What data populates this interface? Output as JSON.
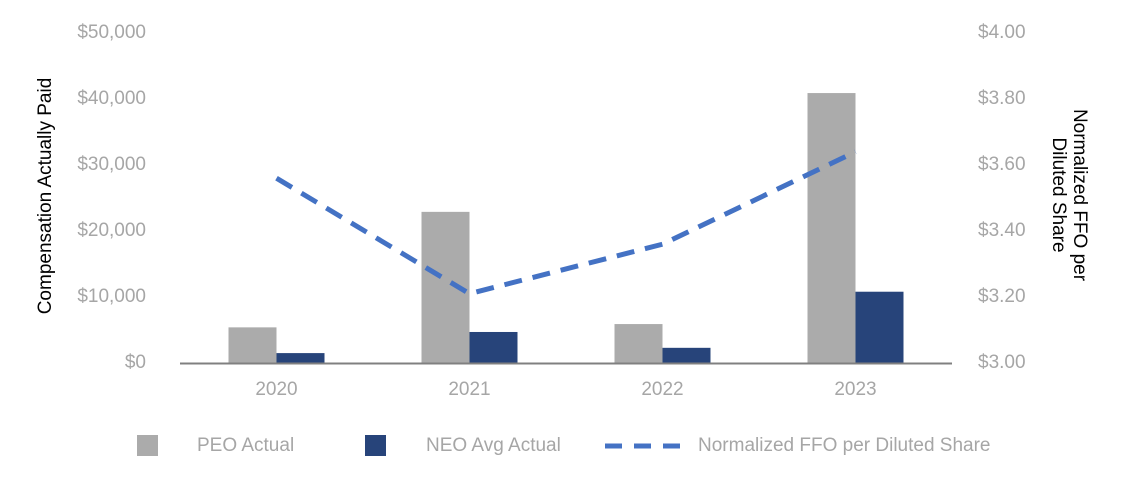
{
  "chart_data": {
    "type": "combo",
    "categories": [
      "2020",
      "2021",
      "2022",
      "2023"
    ],
    "series": [
      {
        "name": "PEO Actual",
        "type": "bar",
        "axis": "left",
        "color": "#ABABAB",
        "values": [
          5400,
          22900,
          5900,
          40900
        ]
      },
      {
        "name": "NEO Avg Actual",
        "type": "bar",
        "axis": "left",
        "color": "#27447A",
        "values": [
          1500,
          4700,
          2300,
          10800
        ]
      },
      {
        "name": "Normalized FFO per Diluted Share",
        "type": "line",
        "line_style": "dashed",
        "axis": "right",
        "color": "#4472C4",
        "values": [
          3.56,
          3.21,
          3.36,
          3.64
        ]
      }
    ],
    "left_axis": {
      "label": "Compensation Actually Paid",
      "min": 0,
      "max": 50000,
      "ticks": [
        "$0",
        "$10,000",
        "$20,000",
        "$30,000",
        "$40,000",
        "$50,000"
      ]
    },
    "right_axis": {
      "label_line1": "Normalized FFO per",
      "label_line2": "Diluted Share",
      "min": 3.0,
      "max": 4.0,
      "ticks": [
        "$3.00",
        "$3.20",
        "$3.40",
        "$3.60",
        "$3.80",
        "$4.00"
      ]
    },
    "legend_position": "bottom",
    "grid": false,
    "colors": {
      "axis_line": "#808080",
      "tick_text": "#A6A6A6",
      "axis_title_text": "#000000"
    }
  }
}
